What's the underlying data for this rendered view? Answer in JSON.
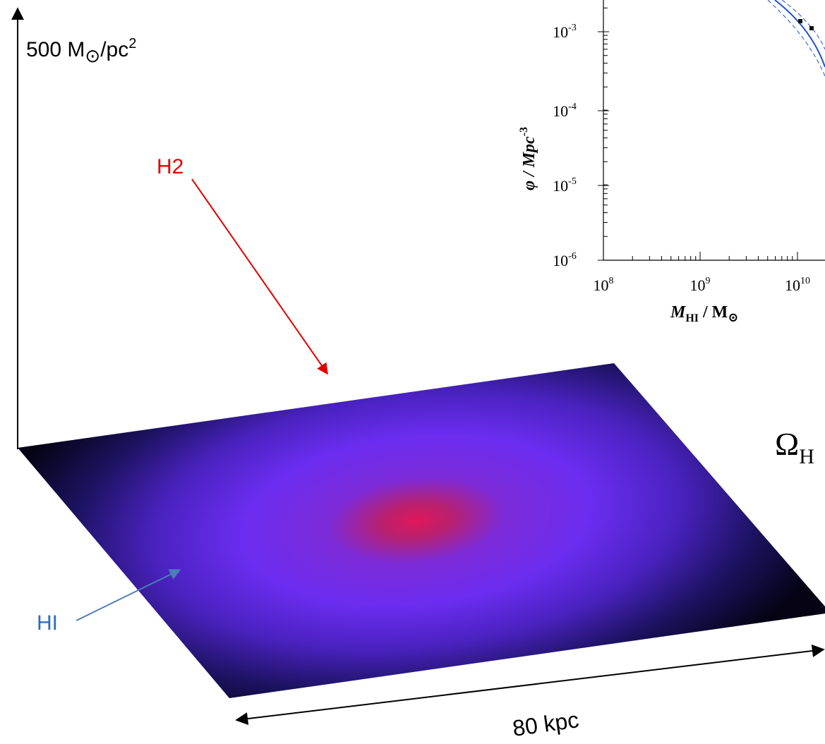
{
  "axis_label": {
    "main": "500 M",
    "sub": "⊙",
    "unit": "/pc",
    "sup": "2"
  },
  "labels": {
    "h2": "H2",
    "hi": "HI",
    "scale": "80 kpc"
  },
  "inset": {
    "y_label": {
      "main": "φ / Mpc",
      "sup": "-3"
    },
    "y_ticks": [
      {
        "base": "10",
        "exp": "-3"
      },
      {
        "base": "10",
        "exp": "-4"
      },
      {
        "base": "10",
        "exp": "-5"
      },
      {
        "base": "10",
        "exp": "-6"
      }
    ],
    "x_ticks": [
      {
        "base": "10",
        "exp": "8"
      },
      {
        "base": "10",
        "exp": "9"
      },
      {
        "base": "10",
        "exp": "10"
      }
    ],
    "x_label": {
      "main": "M",
      "sub": "HI",
      "unit": " / M",
      "unit_sub": "⊙"
    }
  },
  "omega": {
    "main": "Ω",
    "sub": "H"
  }
}
